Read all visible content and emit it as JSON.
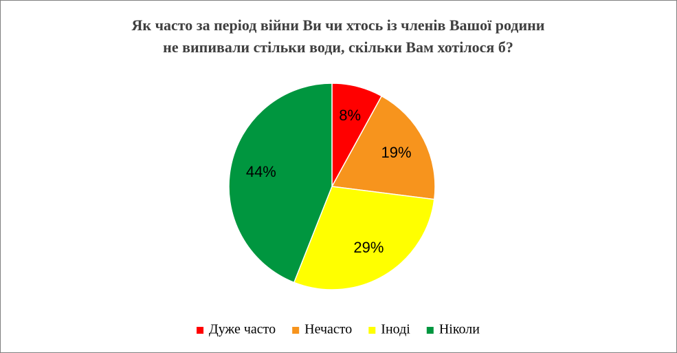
{
  "chart_data": {
    "type": "pie",
    "title": [
      "Як часто за період війни Ви чи хтось із членів Вашої родини",
      "не випивали стільки води, скільки Вам хотілося б?"
    ],
    "categories": [
      "Дуже часто",
      "Нечасто",
      "Іноді",
      "Ніколи"
    ],
    "values": [
      8,
      19,
      29,
      44
    ],
    "value_labels": [
      "8%",
      "19%",
      "29%",
      "44%"
    ],
    "colors": [
      "#ff0000",
      "#f7941d",
      "#ffff00",
      "#00963f"
    ],
    "legend": "bottom"
  }
}
